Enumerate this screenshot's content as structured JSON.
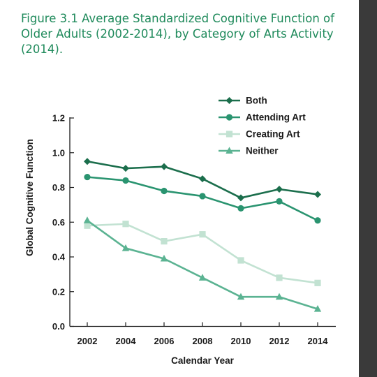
{
  "figure": {
    "title": "Figure 3.1 Average Standardized Cognitive Function of Older Adults (2002-2014), by Category of Arts Activity (2014)."
  },
  "chart_data": {
    "type": "line",
    "title": "Figure 3.1 Average Standardized Cognitive Function of Older Adults (2002-2014), by Category of Arts Activity (2014).",
    "xlabel": "Calendar Year",
    "ylabel": "Global Cognitive Function",
    "x": [
      "2002",
      "2004",
      "2006",
      "2008",
      "2010",
      "2012",
      "2014"
    ],
    "ylim": [
      0,
      1.2
    ],
    "yticks": [
      "0.0",
      "0.2",
      "0.4",
      "0.6",
      "0.8",
      "1.0",
      "1.2"
    ],
    "grid": false,
    "legend_position": "top-right",
    "series": [
      {
        "name": "Both",
        "marker": "diamond",
        "color": "#1b6e4c",
        "values": [
          0.95,
          0.91,
          0.92,
          0.85,
          0.74,
          0.79,
          0.76
        ]
      },
      {
        "name": "Attending Art",
        "marker": "circle",
        "color": "#2a9470",
        "values": [
          0.86,
          0.84,
          0.78,
          0.75,
          0.68,
          0.72,
          0.61
        ]
      },
      {
        "name": "Creating Art",
        "marker": "square",
        "color": "#c2e2d2",
        "values": [
          0.58,
          0.59,
          0.49,
          0.53,
          0.38,
          0.28,
          0.25
        ]
      },
      {
        "name": "Neither",
        "marker": "triangle",
        "color": "#5bb392",
        "values": [
          0.61,
          0.45,
          0.39,
          0.28,
          0.17,
          0.17,
          0.1
        ]
      }
    ]
  }
}
